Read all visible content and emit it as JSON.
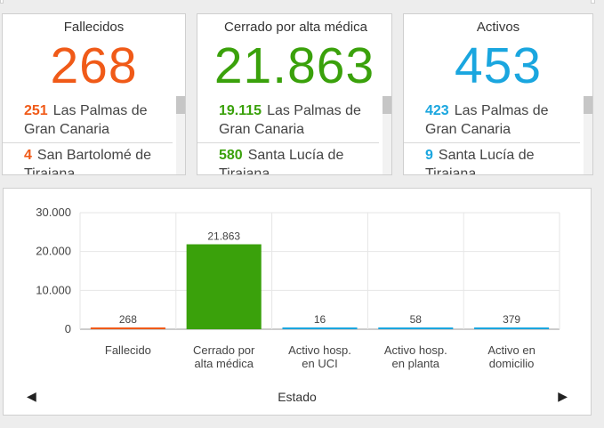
{
  "cards": [
    {
      "title": "Fallecidos",
      "value": "268",
      "color": "#f05a18",
      "items": [
        {
          "num": "251",
          "name": "Las Palmas de Gran Canaria"
        },
        {
          "num": "4",
          "name": "San Bartolomé de Tirajana"
        }
      ]
    },
    {
      "title": "Cerrado por alta médica",
      "value": "21.863",
      "color": "#3aa10b",
      "items": [
        {
          "num": "19.115",
          "name": "Las Palmas de Gran Canaria"
        },
        {
          "num": "580",
          "name": "Santa Lucía de Tirajana"
        }
      ]
    },
    {
      "title": "Activos",
      "value": "453",
      "color": "#1aa6df",
      "items": [
        {
          "num": "423",
          "name": "Las Palmas de Gran Canaria"
        },
        {
          "num": "9",
          "name": "Santa Lucía de Tirajana"
        }
      ]
    }
  ],
  "chart_data": {
    "type": "bar",
    "categories": [
      "Fallecido",
      "Cerrado por alta médica",
      "Activo hosp. en UCI",
      "Activo hosp. en planta",
      "Activo en domicilio"
    ],
    "category_lines": [
      [
        "Fallecido"
      ],
      [
        "Cerrado por",
        "alta médica"
      ],
      [
        "Activo hosp.",
        "en UCI"
      ],
      [
        "Activo hosp.",
        "en planta"
      ],
      [
        "Activo en",
        "domicilio"
      ]
    ],
    "values": [
      268,
      21863,
      16,
      58,
      379
    ],
    "value_labels": [
      "268",
      "21.863",
      "16",
      "58",
      "379"
    ],
    "colors": [
      "#f05a18",
      "#3aa10b",
      "#1aa6df",
      "#1aa6df",
      "#1aa6df"
    ],
    "ylim": [
      0,
      30000
    ],
    "yticks": [
      0,
      10000,
      20000,
      30000
    ],
    "ytick_labels": [
      "0",
      "10.000",
      "20.000",
      "30.000"
    ],
    "xlabel": "Estado",
    "ylabel": "",
    "grid": true
  },
  "nav": {
    "prev": "◀",
    "next": "▶"
  }
}
